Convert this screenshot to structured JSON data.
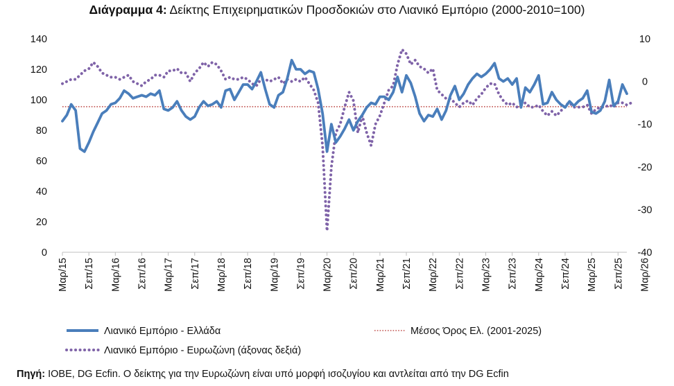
{
  "title": {
    "bold": "Διάγραμμα 4:",
    "text": " Δείκτης Επιχειρηματικών Προσδοκιών στο Λιανικό Εμπόριο (2000-2010=100)"
  },
  "source": {
    "bold": "Πηγή:",
    "text": " IOBE, DG Ecfin. O δείκτης για την Ευρωζώνη είναι υπό μορφή ισοζυγίου και αντλείται από την DG Ecfin"
  },
  "colors": {
    "greece": "#4a7ebb",
    "eurozone": "#7f63a8",
    "average": "#c0504d",
    "axis": "#bfbfbf"
  },
  "chart_data": {
    "type": "line",
    "title": "Δείκτης Επιχειρηματικών Προσδοκιών στο Λιανικό Εμπόριο (2000-2010=100)",
    "x_labels": [
      "Μαρ/15",
      "Σεπ/15",
      "Μαρ/16",
      "Σεπ/16",
      "Μαρ/17",
      "Σεπ/17",
      "Μαρ/18",
      "Σεπ/18",
      "Μαρ/19",
      "Σεπ/19",
      "Μαρ/20",
      "Σεπ/20",
      "Μαρ/21",
      "Σεπ/21",
      "Μαρ/22",
      "Σεπ/22",
      "Μαρ/23",
      "Σεπ/23",
      "Μαρ/24",
      "Σεπ/24",
      "Μαρ/25",
      "Σεπ/25",
      "Μαρ/26"
    ],
    "period_start": "Μαρ/15",
    "period_end": "Μαρ/26",
    "y_left": {
      "min": 0,
      "max": 140,
      "ticks": [
        0,
        20,
        40,
        60,
        80,
        100,
        120,
        140
      ]
    },
    "y_right": {
      "min": -40,
      "max": 10,
      "ticks": [
        -40,
        -30,
        -20,
        -10,
        0,
        10
      ]
    },
    "legend_position": "bottom",
    "series": [
      {
        "name": "Λιανικό Εμπόριο  - Ελλάδα",
        "axis": "left",
        "style": "solid",
        "values": [
          86,
          90,
          97,
          93,
          68,
          66,
          72,
          79,
          85,
          91,
          93,
          97,
          98,
          101,
          106,
          104,
          101,
          102,
          103,
          102,
          104,
          103,
          106,
          94,
          93,
          95,
          99,
          93,
          89,
          87,
          89,
          95,
          99,
          96,
          97,
          99,
          95,
          106,
          107,
          100,
          105,
          110,
          110,
          107,
          112,
          118,
          107,
          97,
          95,
          103,
          105,
          114,
          126,
          120,
          120,
          117,
          119,
          118,
          107,
          91,
          66,
          84,
          72,
          76,
          81,
          87,
          80,
          86,
          90,
          95,
          98,
          97,
          102,
          102,
          100,
          105,
          115,
          105,
          116,
          111,
          102,
          91,
          86,
          90,
          89,
          94,
          87,
          93,
          103,
          109,
          100,
          104,
          110,
          114,
          117,
          115,
          117,
          120,
          124,
          114,
          112,
          114,
          110,
          114,
          95,
          108,
          105,
          110,
          116,
          97,
          98,
          105,
          100,
          97,
          95,
          99,
          96,
          99,
          101,
          106,
          92,
          91,
          93,
          99,
          113,
          96,
          99,
          110,
          104
        ]
      },
      {
        "name": "Λιανικό Εμπόριο - Ευρωζώνη (άξονας δεξιά)",
        "axis": "right",
        "style": "dotted",
        "values": [
          -0.5,
          0,
          0.5,
          0.5,
          1.5,
          2.5,
          3,
          4.5,
          3.5,
          2,
          1.5,
          1,
          1,
          0.5,
          1,
          1.5,
          0,
          -0.5,
          -1,
          0,
          0.5,
          1.5,
          1.5,
          1,
          2.5,
          2.5,
          3,
          2,
          2,
          0,
          2,
          3,
          4.5,
          3.5,
          4.5,
          4,
          2.5,
          0.5,
          1,
          0.5,
          0.5,
          1,
          0.5,
          -0.5,
          -1,
          0.5,
          0.5,
          0,
          0.5,
          1,
          -0.5,
          0.5,
          0,
          0.5,
          0,
          1,
          -0.5,
          -2,
          -5,
          -15,
          -35,
          -20,
          -12,
          -10,
          -6,
          -2.5,
          -4.5,
          -12,
          -8,
          -12,
          -15,
          -10,
          -8,
          -5,
          -2,
          -1,
          4,
          7.5,
          6.5,
          4,
          5,
          3.5,
          3,
          2,
          3,
          -2,
          -3,
          -4,
          -4,
          -5,
          -6,
          -5,
          -4.5,
          -5.5,
          -4,
          -3,
          -1.5,
          -0.5,
          -0.5,
          -3,
          -4.5,
          -5.5,
          -5,
          -6,
          -5.5,
          -5,
          -6,
          -6,
          -5.5,
          -7,
          -8,
          -7,
          -8,
          -7,
          -5.5,
          -5,
          -6,
          -6,
          -6,
          -5.5,
          -7.5,
          -6.5,
          -6,
          -6,
          -5.5,
          -6,
          -5,
          -5,
          -5.5,
          -5
        ]
      },
      {
        "name": "Μέσος Όρος Ελ.  (2001-2025)",
        "axis": "left",
        "style": "dotted",
        "values": [
          95.5
        ]
      }
    ]
  }
}
